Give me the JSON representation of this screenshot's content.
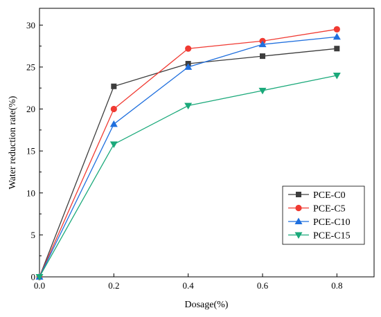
{
  "chart_data": {
    "type": "line",
    "title": "",
    "xlabel": "Dosage(%)",
    "ylabel": "Water reduction rate(%)",
    "xlim": [
      0,
      0.9
    ],
    "ylim": [
      0,
      32
    ],
    "x_ticks": [
      "0.0",
      "0.2",
      "0.4",
      "0.6",
      "0.8"
    ],
    "y_ticks": [
      "0",
      "5",
      "10",
      "15",
      "20",
      "25",
      "30"
    ],
    "x": [
      0.0,
      0.2,
      0.4,
      0.6,
      0.8
    ],
    "grid": false,
    "legend_position": "right",
    "series": [
      {
        "name": "PCE-C0",
        "color": "#3d3d3d",
        "marker": "square",
        "values": [
          0,
          22.7,
          25.4,
          26.3,
          27.2
        ]
      },
      {
        "name": "PCE-C5",
        "color": "#f03a32",
        "marker": "circle",
        "values": [
          0,
          20.0,
          27.2,
          28.1,
          29.5
        ]
      },
      {
        "name": "PCE-C10",
        "color": "#1f6fde",
        "marker": "triangle-up",
        "values": [
          0,
          18.2,
          25.0,
          27.7,
          28.6
        ]
      },
      {
        "name": "PCE-C15",
        "color": "#1aa97a",
        "marker": "triangle-down",
        "values": [
          0,
          15.8,
          20.4,
          22.2,
          24.0
        ]
      }
    ]
  }
}
